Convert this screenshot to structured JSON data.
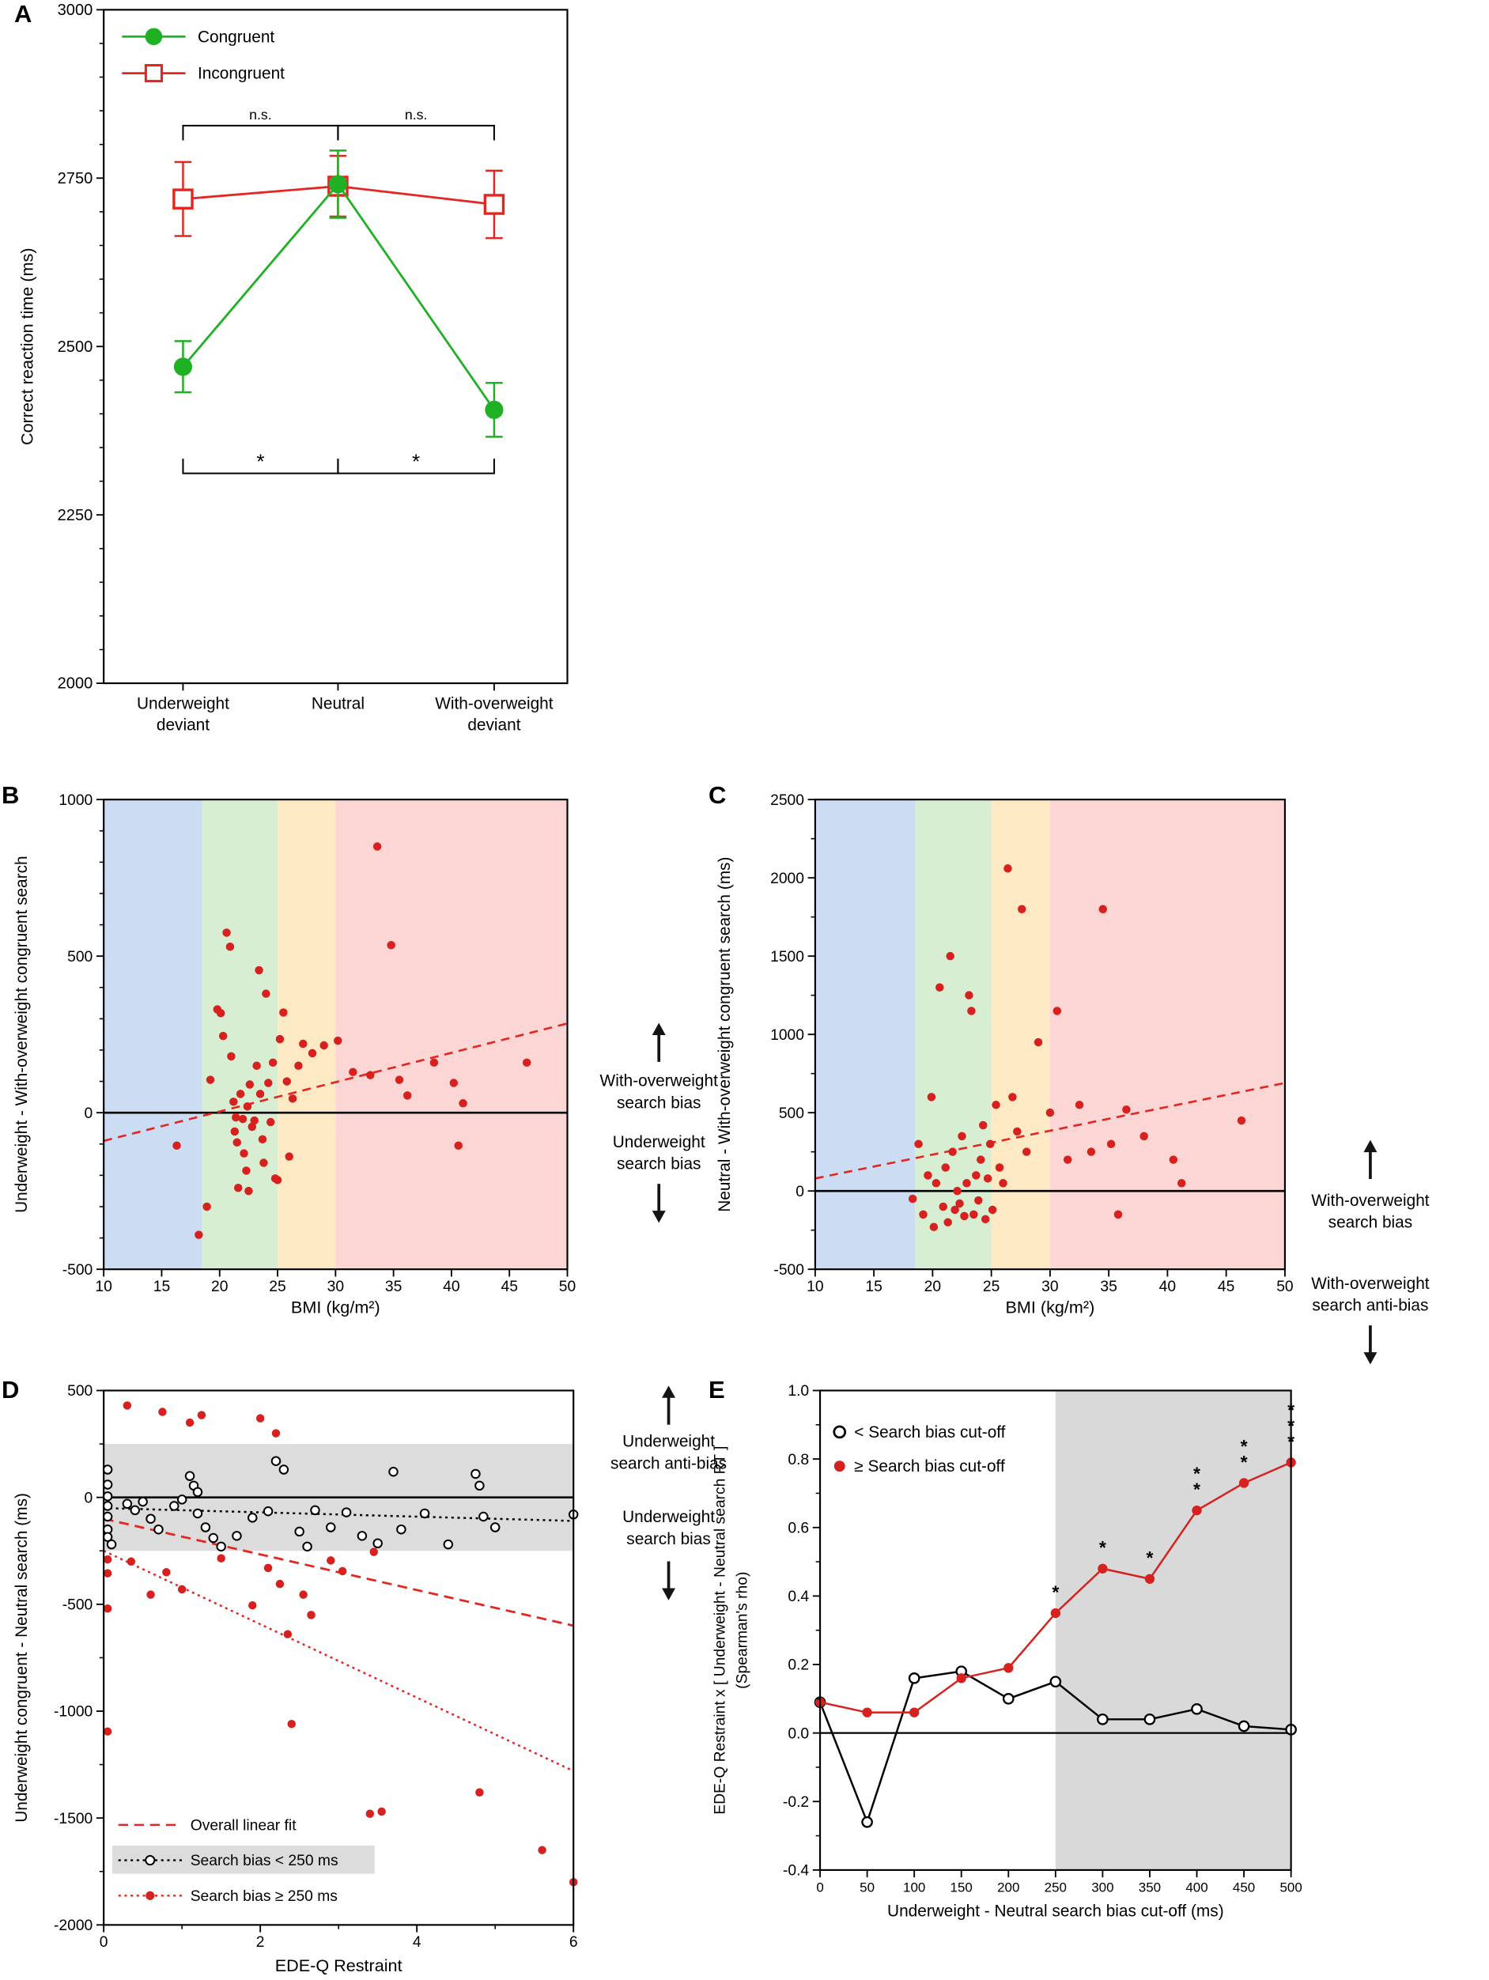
{
  "background": "#ffffff",
  "chart_data": [
    {
      "panel_label": "A",
      "type": "line",
      "ylabel": "Correct reaction time (ms)",
      "ylim": [
        2000,
        3000
      ],
      "yticks": [
        2000,
        2250,
        2500,
        2750,
        3000
      ],
      "categories": [
        [
          "Underweight",
          "deviant"
        ],
        [
          "Neutral"
        ],
        [
          "With-overweight",
          "deviant"
        ]
      ],
      "series": [
        {
          "name": "Congruent",
          "marker": "filled-circle",
          "color": "#1fb024",
          "values": [
            2470,
            2741,
            2406
          ],
          "errors": [
            38,
            50,
            40
          ]
        },
        {
          "name": "Incongruent",
          "marker": "open-square",
          "color": "#e52521",
          "values": [
            2719,
            2738,
            2711
          ],
          "errors": [
            55,
            45,
            50
          ]
        }
      ],
      "significance": {
        "top": [
          {
            "pair": [
              0,
              1
            ],
            "label": "n.s."
          },
          {
            "pair": [
              1,
              2
            ],
            "label": "n.s."
          }
        ],
        "bottom": [
          {
            "pair": [
              0,
              1
            ],
            "label": "*"
          },
          {
            "pair": [
              1,
              2
            ],
            "label": "*"
          }
        ]
      }
    },
    {
      "panel_label": "B",
      "type": "scatter",
      "xlabel": "BMI (kg/m²)",
      "ylabel": "Underweight - With-overweight congruent search",
      "xlim": [
        10,
        50
      ],
      "ylim": [
        -500,
        1000
      ],
      "xticks": [
        10,
        15,
        20,
        25,
        30,
        35,
        40,
        45,
        50
      ],
      "yticks": [
        -500,
        0,
        500,
        1000
      ],
      "bmi_bands": [
        {
          "range": [
            10,
            18.5
          ],
          "color": "#ccdcf2"
        },
        {
          "range": [
            18.5,
            25
          ],
          "color": "#d8eed2"
        },
        {
          "range": [
            25,
            30
          ],
          "color": "#fde9c4"
        },
        {
          "range": [
            30,
            50
          ],
          "color": "#fcd6d4"
        }
      ],
      "point_color": "#d6211e",
      "fit_line": {
        "x": [
          10,
          50
        ],
        "y": [
          -90,
          285
        ],
        "color": "#e52521",
        "style": "dashed"
      },
      "zero_line": 0,
      "points": [
        [
          16.3,
          -105
        ],
        [
          18.2,
          -390
        ],
        [
          18.9,
          -300
        ],
        [
          19.2,
          105
        ],
        [
          19.8,
          330
        ],
        [
          20.1,
          318
        ],
        [
          20.3,
          245
        ],
        [
          20.6,
          575
        ],
        [
          20.9,
          530
        ],
        [
          21.0,
          180
        ],
        [
          21.2,
          35
        ],
        [
          21.3,
          -60
        ],
        [
          21.4,
          -15
        ],
        [
          21.5,
          -95
        ],
        [
          21.6,
          -240
        ],
        [
          21.8,
          60
        ],
        [
          22.0,
          -20
        ],
        [
          22.1,
          -130
        ],
        [
          22.3,
          -185
        ],
        [
          22.4,
          20
        ],
        [
          22.5,
          -250
        ],
        [
          22.6,
          90
        ],
        [
          22.8,
          -45
        ],
        [
          23.0,
          -25
        ],
        [
          23.2,
          150
        ],
        [
          23.4,
          455
        ],
        [
          23.5,
          60
        ],
        [
          23.7,
          -85
        ],
        [
          23.8,
          -160
        ],
        [
          24.0,
          380
        ],
        [
          24.2,
          95
        ],
        [
          24.4,
          -30
        ],
        [
          24.6,
          160
        ],
        [
          24.8,
          -210
        ],
        [
          25.0,
          -215
        ],
        [
          25.2,
          235
        ],
        [
          25.5,
          320
        ],
        [
          25.8,
          100
        ],
        [
          26.0,
          -140
        ],
        [
          26.3,
          45
        ],
        [
          26.8,
          150
        ],
        [
          27.2,
          220
        ],
        [
          28.0,
          190
        ],
        [
          29.0,
          215
        ],
        [
          30.2,
          230
        ],
        [
          31.5,
          130
        ],
        [
          33.0,
          120
        ],
        [
          33.6,
          850
        ],
        [
          34.8,
          535
        ],
        [
          35.5,
          105
        ],
        [
          36.2,
          55
        ],
        [
          38.5,
          160
        ],
        [
          40.2,
          95
        ],
        [
          40.6,
          -105
        ],
        [
          41.0,
          30
        ],
        [
          46.5,
          160
        ]
      ],
      "annotations_right": [
        {
          "arrow": "up",
          "lines": [
            "With-overweight",
            "search bias"
          ]
        },
        {
          "arrow": "down",
          "lines": [
            "Underweight",
            "search bias"
          ]
        }
      ]
    },
    {
      "panel_label": "C",
      "type": "scatter",
      "xlabel": "BMI (kg/m²)",
      "ylabel": "Neutral - With-overweight congruent search (ms)",
      "xlim": [
        10,
        50
      ],
      "ylim": [
        -500,
        2500
      ],
      "xticks": [
        10,
        15,
        20,
        25,
        30,
        35,
        40,
        45,
        50
      ],
      "yticks": [
        -500,
        0,
        500,
        1000,
        1500,
        2000,
        2500
      ],
      "bmi_bands": [
        {
          "range": [
            10,
            18.5
          ],
          "color": "#ccdcf2"
        },
        {
          "range": [
            18.5,
            25
          ],
          "color": "#d8eed2"
        },
        {
          "range": [
            25,
            30
          ],
          "color": "#fde9c4"
        },
        {
          "range": [
            30,
            50
          ],
          "color": "#fcd6d4"
        }
      ],
      "point_color": "#d6211e",
      "fit_line": {
        "x": [
          10,
          50
        ],
        "y": [
          80,
          690
        ],
        "color": "#e52521",
        "style": "dashed"
      },
      "zero_line": 0,
      "points": [
        [
          18.3,
          -50
        ],
        [
          18.8,
          300
        ],
        [
          19.2,
          -150
        ],
        [
          19.6,
          100
        ],
        [
          19.9,
          600
        ],
        [
          20.1,
          -230
        ],
        [
          20.3,
          50
        ],
        [
          20.6,
          1300
        ],
        [
          20.9,
          -100
        ],
        [
          21.1,
          150
        ],
        [
          21.3,
          -200
        ],
        [
          21.5,
          1500
        ],
        [
          21.7,
          250
        ],
        [
          21.9,
          -120
        ],
        [
          22.1,
          0
        ],
        [
          22.3,
          -80
        ],
        [
          22.5,
          350
        ],
        [
          22.7,
          -160
        ],
        [
          22.9,
          50
        ],
        [
          23.1,
          1250
        ],
        [
          23.3,
          1150
        ],
        [
          23.5,
          -150
        ],
        [
          23.7,
          100
        ],
        [
          23.9,
          -60
        ],
        [
          24.1,
          200
        ],
        [
          24.3,
          420
        ],
        [
          24.5,
          -180
        ],
        [
          24.7,
          80
        ],
        [
          24.9,
          300
        ],
        [
          25.1,
          -120
        ],
        [
          25.4,
          550
        ],
        [
          25.7,
          150
        ],
        [
          26.0,
          50
        ],
        [
          26.4,
          2060
        ],
        [
          26.8,
          600
        ],
        [
          27.2,
          380
        ],
        [
          27.6,
          1800
        ],
        [
          28.0,
          250
        ],
        [
          29.0,
          950
        ],
        [
          30.0,
          500
        ],
        [
          30.6,
          1150
        ],
        [
          31.5,
          200
        ],
        [
          32.5,
          550
        ],
        [
          33.5,
          250
        ],
        [
          34.5,
          1800
        ],
        [
          35.2,
          300
        ],
        [
          35.8,
          -150
        ],
        [
          36.5,
          520
        ],
        [
          38.0,
          350
        ],
        [
          40.5,
          200
        ],
        [
          41.2,
          50
        ],
        [
          46.3,
          450
        ]
      ],
      "annotations_right": [
        {
          "arrow": "up",
          "lines": [
            "With-overweight",
            "search bias"
          ]
        },
        {
          "arrow": "down",
          "lines": [
            "With-overweight",
            "search anti-bias"
          ]
        }
      ]
    },
    {
      "panel_label": "D",
      "type": "scatter",
      "xlabel": "EDE-Q Restraint",
      "ylabel": "Underweight congruent - Neutral search (ms)",
      "xlim": [
        0,
        6
      ],
      "ylim": [
        -2000,
        500
      ],
      "xticks": [
        0,
        2,
        4,
        6
      ],
      "yticks": [
        -2000,
        -1500,
        -1000,
        -500,
        0,
        500
      ],
      "shaded_band": {
        "range": [
          -250,
          250
        ],
        "color": "#dcdcdc"
      },
      "zero_line": 0,
      "lines": [
        {
          "name": "Overall linear fit",
          "color": "#e52521",
          "dash": "dashed",
          "x": [
            0,
            6
          ],
          "y": [
            -100,
            -600
          ]
        },
        {
          "name": "Search bias < 250 ms",
          "color": "#000000",
          "dash": "dotted",
          "x": [
            0,
            6
          ],
          "y": [
            -50,
            -110
          ]
        },
        {
          "name": "Search bias ≥ 250 ms",
          "color": "#e52521",
          "dash": "dotted",
          "x": [
            0,
            6
          ],
          "y": [
            -250,
            -1280
          ]
        }
      ],
      "groups": [
        {
          "name": "Search bias < 250 ms",
          "marker": "open-circle",
          "color": "#000000",
          "points": [
            [
              0.05,
              130
            ],
            [
              0.05,
              60
            ],
            [
              0.05,
              5
            ],
            [
              0.05,
              -40
            ],
            [
              0.05,
              -90
            ],
            [
              0.05,
              -150
            ],
            [
              0.05,
              -185
            ],
            [
              0.1,
              -220
            ],
            [
              0.3,
              -30
            ],
            [
              0.4,
              -60
            ],
            [
              0.5,
              -20
            ],
            [
              0.6,
              -100
            ],
            [
              0.7,
              -150
            ],
            [
              0.9,
              -40
            ],
            [
              1.0,
              -10
            ],
            [
              1.1,
              100
            ],
            [
              1.15,
              55
            ],
            [
              1.2,
              25
            ],
            [
              1.2,
              -75
            ],
            [
              1.3,
              -140
            ],
            [
              1.4,
              -190
            ],
            [
              1.5,
              -230
            ],
            [
              1.7,
              -180
            ],
            [
              1.9,
              -95
            ],
            [
              2.1,
              -65
            ],
            [
              2.2,
              170
            ],
            [
              2.3,
              130
            ],
            [
              2.5,
              -160
            ],
            [
              2.6,
              -230
            ],
            [
              2.7,
              -60
            ],
            [
              2.9,
              -140
            ],
            [
              3.1,
              -70
            ],
            [
              3.3,
              -180
            ],
            [
              3.5,
              -215
            ],
            [
              3.7,
              120
            ],
            [
              3.8,
              -150
            ],
            [
              4.1,
              -75
            ],
            [
              4.4,
              -220
            ],
            [
              4.75,
              110
            ],
            [
              4.8,
              55
            ],
            [
              4.85,
              -90
            ],
            [
              5.0,
              -140
            ],
            [
              6.0,
              -80
            ]
          ]
        },
        {
          "name": "Search bias ≥ 250 ms",
          "marker": "filled-circle",
          "color": "#d6211e",
          "points": [
            [
              0.05,
              -290
            ],
            [
              0.05,
              -355
            ],
            [
              0.05,
              -520
            ],
            [
              0.05,
              -1095
            ],
            [
              0.3,
              430
            ],
            [
              0.35,
              -300
            ],
            [
              0.6,
              -455
            ],
            [
              0.75,
              400
            ],
            [
              0.8,
              -350
            ],
            [
              1.0,
              -430
            ],
            [
              1.1,
              350
            ],
            [
              1.25,
              385
            ],
            [
              1.5,
              -285
            ],
            [
              1.9,
              -505
            ],
            [
              2.0,
              370
            ],
            [
              2.1,
              -330
            ],
            [
              2.2,
              300
            ],
            [
              2.25,
              -405
            ],
            [
              2.35,
              -640
            ],
            [
              2.4,
              -1060
            ],
            [
              2.55,
              -455
            ],
            [
              2.65,
              -550
            ],
            [
              2.9,
              -295
            ],
            [
              3.05,
              -345
            ],
            [
              3.4,
              -1480
            ],
            [
              3.45,
              -255
            ],
            [
              3.55,
              -1470
            ],
            [
              4.8,
              -1380
            ],
            [
              5.6,
              -1650
            ],
            [
              6.0,
              -1800
            ]
          ]
        }
      ],
      "legend": [
        "Overall linear fit",
        "Search bias < 250 ms",
        "Search bias ≥ 250 ms"
      ],
      "annotations_right": [
        {
          "arrow": "up",
          "lines": [
            "Underweight",
            "search anti-bias"
          ]
        },
        {
          "arrow": "down",
          "lines": [
            "Underweight",
            "search bias"
          ]
        }
      ]
    },
    {
      "panel_label": "E",
      "type": "line",
      "xlabel": "Underweight - Neutral search bias cut-off (ms)",
      "ylabel_lines": [
        "EDE-Q Restraint x [ Underweight - Neutral search RT ]",
        "(Spearman's rho)"
      ],
      "xlim": [
        0,
        500
      ],
      "ylim": [
        -0.4,
        1.0
      ],
      "xticks": [
        0,
        50,
        100,
        150,
        200,
        250,
        300,
        350,
        400,
        450,
        500
      ],
      "yticks": [
        -0.4,
        -0.2,
        0.0,
        0.2,
        0.4,
        0.6,
        0.8,
        1.0
      ],
      "shaded_region": {
        "range": [
          250,
          500
        ],
        "color": "#d9d9d9"
      },
      "zero_line": 0,
      "x": [
        0,
        50,
        100,
        150,
        200,
        250,
        300,
        350,
        400,
        450,
        500
      ],
      "series": [
        {
          "name": "< Search bias cut-off",
          "marker": "open-circle",
          "color": "#000000",
          "values": [
            0.09,
            -0.26,
            0.16,
            0.18,
            0.1,
            0.15,
            0.04,
            0.04,
            0.07,
            0.02,
            0.01
          ]
        },
        {
          "name": "≥ Search bias cut-off",
          "marker": "filled-circle",
          "color": "#d6211e",
          "values": [
            0.09,
            0.06,
            0.06,
            0.16,
            0.19,
            0.35,
            0.48,
            0.45,
            0.65,
            0.73,
            0.79
          ]
        }
      ],
      "significance": [
        {
          "x": 250,
          "label": "*"
        },
        {
          "x": 300,
          "label": "*"
        },
        {
          "x": 350,
          "label": "*"
        },
        {
          "x": 400,
          "label": "**"
        },
        {
          "x": 450,
          "label": "**"
        },
        {
          "x": 500,
          "label": "***"
        }
      ]
    }
  ]
}
